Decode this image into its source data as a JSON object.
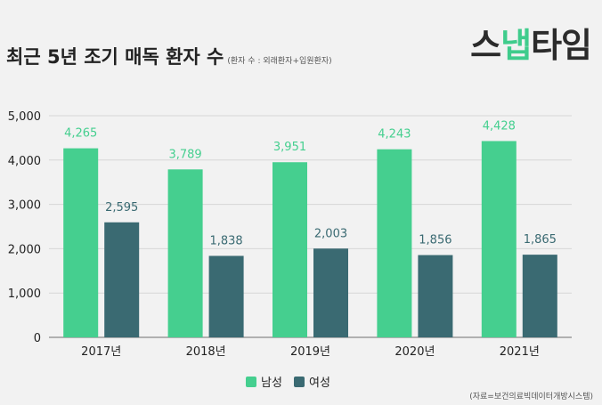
{
  "header": {
    "title": "최근 5년 조기 매독 환자 수",
    "subtitle": "(환자 수 : 외래환자+입원환자)"
  },
  "logo": {
    "part1": "스",
    "part2": "냅",
    "part3": "타임"
  },
  "footer": {
    "source": "(자료=보건의료빅데이터개방시스템)"
  },
  "colors": {
    "male": "#45cf8f",
    "female": "#3a6a72",
    "male_label": "#45cf8f",
    "female_label": "#3a6a72"
  },
  "chart_data": {
    "type": "bar",
    "categories": [
      "2017년",
      "2018년",
      "2019년",
      "2020년",
      "2021년"
    ],
    "series": [
      {
        "name": "남성",
        "values": [
          4265,
          3789,
          3951,
          4243,
          4428
        ]
      },
      {
        "name": "여성",
        "values": [
          2595,
          1838,
          2003,
          1856,
          1865
        ]
      }
    ],
    "data_labels": [
      [
        "4,265",
        "3,789",
        "3,951",
        "4,243",
        "4,428"
      ],
      [
        "2,595",
        "1,838",
        "2,003",
        "1,856",
        "1,865"
      ]
    ],
    "yticks": [
      0,
      1000,
      2000,
      3000,
      4000,
      5000
    ],
    "ytick_labels": [
      "0",
      "1,000",
      "2,000",
      "3,000",
      "4,000",
      "5,000"
    ],
    "ylim": [
      0,
      5000
    ],
    "grid": true,
    "legend_position": "bottom-center"
  }
}
